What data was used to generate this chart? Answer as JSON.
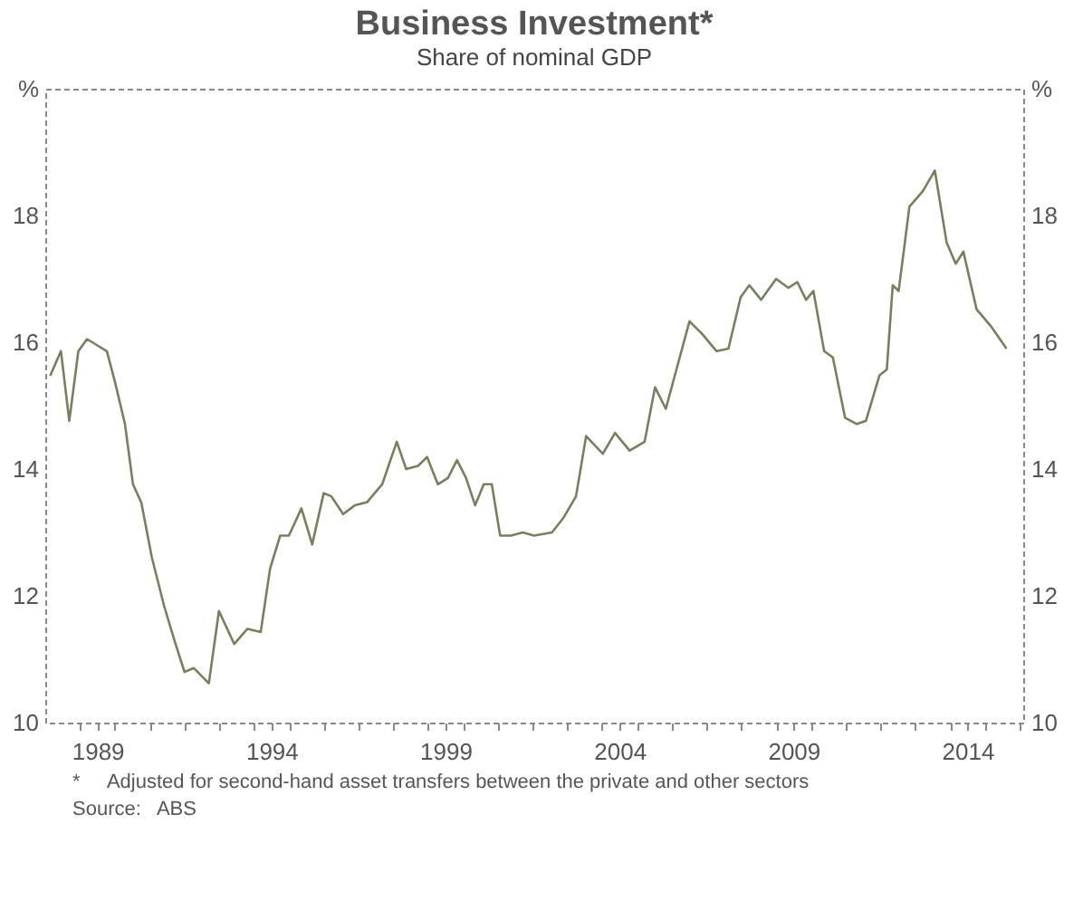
{
  "chart_data": {
    "type": "line",
    "title": "Business Investment*",
    "subtitle": "Share of nominal GDP",
    "annotations": [
      "*     Adjusted for second-hand asset transfers between the private and other sectors",
      "Source:   ABS"
    ],
    "x": [
      1988.14,
      1988.45,
      1988.69,
      1988.95,
      1989.2,
      1989.5,
      1989.77,
      1990.0,
      1990.29,
      1990.52,
      1990.76,
      1991.06,
      1991.41,
      1991.72,
      1992.0,
      1992.27,
      1992.7,
      1992.99,
      1993.43,
      1993.81,
      1994.19,
      1994.46,
      1994.75,
      1995.0,
      1995.36,
      1995.67,
      1996.0,
      1996.22,
      1996.56,
      1996.9,
      1997.25,
      1997.68,
      1998.1,
      1998.37,
      1998.71,
      1998.97,
      1999.28,
      1999.57,
      1999.83,
      2000.09,
      2000.35,
      2000.6,
      2000.83,
      2001.07,
      2001.38,
      2001.72,
      2002.04,
      2002.56,
      2002.9,
      2003.25,
      2003.54,
      2004.02,
      2004.37,
      2004.79,
      2005.22,
      2005.52,
      2005.83,
      2006.51,
      2006.86,
      2007.29,
      2007.63,
      2007.98,
      2008.23,
      2008.57,
      2009.0,
      2009.35,
      2009.61,
      2009.86,
      2010.07,
      2010.38,
      2010.63,
      2010.98,
      2011.32,
      2011.58,
      2011.97,
      2012.18,
      2012.35,
      2012.52,
      2012.83,
      2013.21,
      2013.56,
      2013.9,
      2014.16,
      2014.38,
      2014.76,
      2015.19,
      2015.62
    ],
    "series": [
      {
        "color": "#76805a",
        "values": [
          15.47,
          15.86,
          14.76,
          15.86,
          16.05,
          15.95,
          15.86,
          15.38,
          14.71,
          13.76,
          13.47,
          12.61,
          11.85,
          11.28,
          10.8,
          10.86,
          10.62,
          11.76,
          11.24,
          11.48,
          11.43,
          12.43,
          12.95,
          12.95,
          13.38,
          12.81,
          13.62,
          13.57,
          13.29,
          13.43,
          13.48,
          13.76,
          14.43,
          14.0,
          14.05,
          14.19,
          13.76,
          13.86,
          14.14,
          13.86,
          13.43,
          13.76,
          13.76,
          12.95,
          12.95,
          13.0,
          12.95,
          13.0,
          13.24,
          13.57,
          14.52,
          14.24,
          14.57,
          14.29,
          14.43,
          15.29,
          14.95,
          16.33,
          16.14,
          15.86,
          15.9,
          16.71,
          16.9,
          16.67,
          17.0,
          16.86,
          16.95,
          16.67,
          16.81,
          15.86,
          15.76,
          14.81,
          14.71,
          14.76,
          15.48,
          15.57,
          16.9,
          16.81,
          18.14,
          18.38,
          18.71,
          17.57,
          17.24,
          17.43,
          16.52,
          16.24,
          15.9
        ]
      }
    ],
    "xlim": [
      1988.0,
      2016.1
    ],
    "xticks": [
      {
        "value": 1989,
        "label": null
      },
      {
        "value": 1989.5,
        "label": "1989"
      },
      {
        "value": 1990,
        "label": null
      },
      {
        "value": 1991,
        "label": null
      },
      {
        "value": 1992,
        "label": null
      },
      {
        "value": 1993,
        "label": null
      },
      {
        "value": 1994,
        "label": null
      },
      {
        "value": 1994.5,
        "label": "1994"
      },
      {
        "value": 1995,
        "label": null
      },
      {
        "value": 1996,
        "label": null
      },
      {
        "value": 1997,
        "label": null
      },
      {
        "value": 1998,
        "label": null
      },
      {
        "value": 1999,
        "label": null
      },
      {
        "value": 1999.5,
        "label": "1999"
      },
      {
        "value": 2000,
        "label": null
      },
      {
        "value": 2001,
        "label": null
      },
      {
        "value": 2002,
        "label": null
      },
      {
        "value": 2003,
        "label": null
      },
      {
        "value": 2004,
        "label": null
      },
      {
        "value": 2004.5,
        "label": "2004"
      },
      {
        "value": 2005,
        "label": null
      },
      {
        "value": 2006,
        "label": null
      },
      {
        "value": 2007,
        "label": null
      },
      {
        "value": 2008,
        "label": null
      },
      {
        "value": 2009,
        "label": null
      },
      {
        "value": 2009.5,
        "label": "2009"
      },
      {
        "value": 2010,
        "label": null
      },
      {
        "value": 2011,
        "label": null
      },
      {
        "value": 2012,
        "label": null
      },
      {
        "value": 2013,
        "label": null
      },
      {
        "value": 2014,
        "label": null
      },
      {
        "value": 2014.5,
        "label": "2014"
      },
      {
        "value": 2015,
        "label": null
      },
      {
        "value": 2016,
        "label": null
      }
    ],
    "ylim": [
      10,
      20
    ],
    "yticks": [
      10,
      12,
      14,
      16,
      18,
      {
        "value": 20,
        "label": "%"
      }
    ],
    "y2lim": [
      10,
      20
    ],
    "y2ticks": [
      10,
      12,
      14,
      16,
      18,
      {
        "value": 20,
        "label": "%"
      }
    ],
    "grid": false,
    "legend": false,
    "marker": "none",
    "line_style": "solid"
  }
}
